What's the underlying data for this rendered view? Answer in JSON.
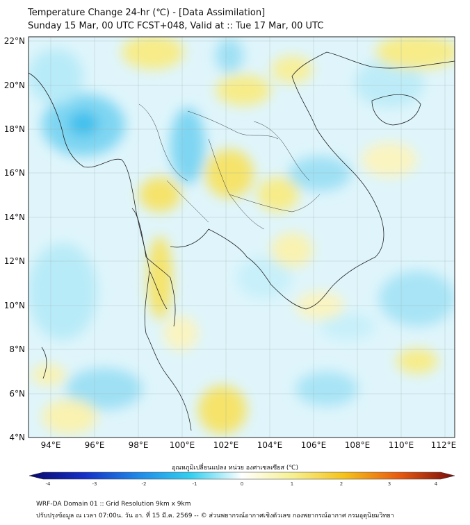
{
  "header": {
    "title": "Temperature Change 24-hr (℃) - [Data Assimilation]",
    "subtitle": "Sunday 15 Mar, 00 UTC FCST+048, Valid at :: Tue 17 Mar, 00 UTC"
  },
  "map": {
    "lat_labels": [
      "22°N",
      "20°N",
      "18°N",
      "16°N",
      "14°N",
      "12°N",
      "10°N",
      "8°N",
      "6°N",
      "4°N"
    ],
    "lon_labels": [
      "94°E",
      "96°E",
      "98°E",
      "100°E",
      "102°E",
      "104°E",
      "106°E",
      "108°E",
      "110°E",
      "112°E"
    ],
    "lat_range": [
      4,
      22.3
    ],
    "lon_range": [
      93,
      112.5
    ]
  },
  "colorbar": {
    "label": "อุณหภูมิเปลี่ยนแปลง หน่วย องศาเซลเซียส (℃)",
    "ticks": [
      "-4",
      "-3",
      "-2",
      "-1",
      "0",
      "1",
      "2",
      "3",
      "4"
    ],
    "colors": {
      "neg4": "#08086b",
      "neg3": "#1530c8",
      "neg2": "#1f8be8",
      "neg1": "#33d0f0",
      "zero": "#ffffff",
      "pos1": "#f6f090",
      "pos2": "#f5c21a",
      "pos3": "#e85a10",
      "pos4": "#7a0a0a"
    }
  },
  "footer": {
    "line1": "WRF-DA Domain 01 :: Grid Resolution 9km x 9km",
    "line2": "ปรับปรุงข้อมูล ณ เวลา 07:00น. วัน อา. ที่ 15 มี.ค. 2569 -- © ส่วนพยากรณ์อากาศเชิงตัวเลข กองพยากรณ์อากาศ กรมอุตุนิยมวิทยา"
  }
}
